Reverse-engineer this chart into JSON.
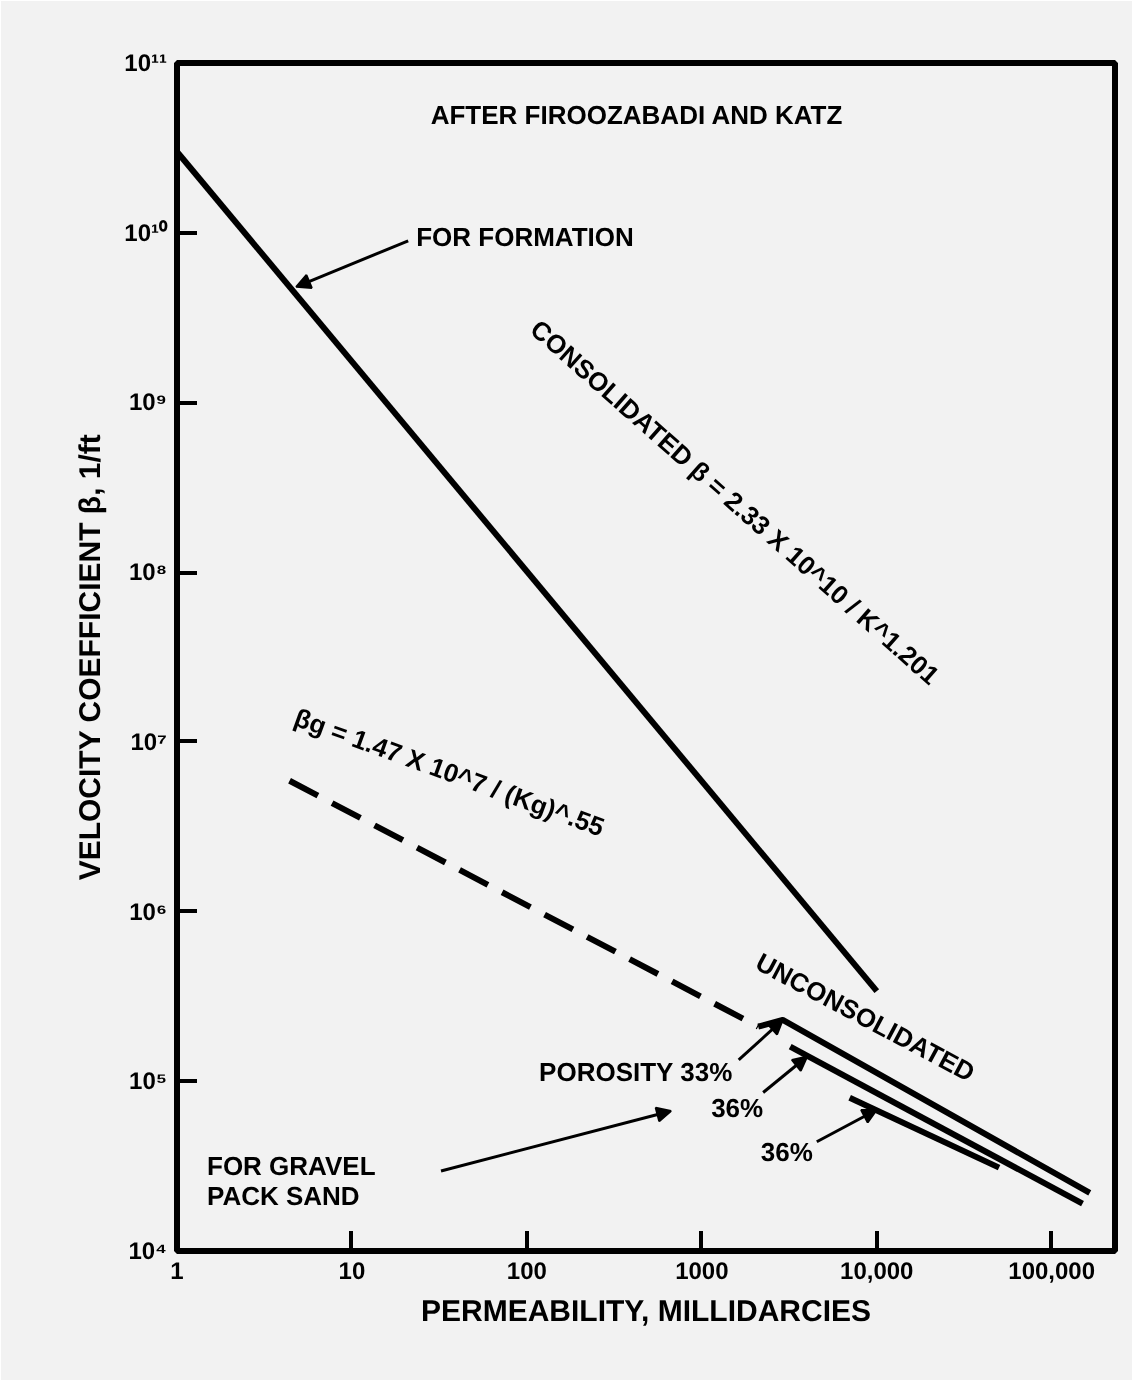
{
  "chart_data": {
    "type": "line",
    "log": "xy",
    "grid": false,
    "xlabel": "PERMEABILITY, MILLIDARCIES",
    "ylabel": "VELOCITY COEFFICIENT β, 1/ft",
    "xlim": [
      1,
      230000
    ],
    "ylim": [
      10000,
      100000000000
    ],
    "xticks": [
      1,
      10,
      100,
      1000,
      {
        "value": 10000,
        "label": "10,000"
      },
      {
        "value": 100000,
        "label": "100,000"
      }
    ],
    "yticks": [
      {
        "value": 10000,
        "label": "10⁴"
      },
      {
        "value": 100000,
        "label": "10⁵"
      },
      {
        "value": 1000000,
        "label": "10⁶"
      },
      {
        "value": 10000000,
        "label": "10⁷"
      },
      {
        "value": 100000000,
        "label": "10⁸"
      },
      {
        "value": 1000000000,
        "label": "10⁹"
      },
      {
        "value": 10000000000,
        "label": "10¹⁰"
      },
      {
        "value": 100000000000,
        "label": "10¹¹"
      }
    ],
    "series": [
      {
        "color": "#000000",
        "line_style": "solid",
        "x": [
          1,
          10000
        ],
        "values": [
          30000000000,
          340000
        ]
      },
      {
        "color": "#000000",
        "line_style": "dashed",
        "x": [
          4.4,
          2100
        ],
        "values": [
          5900000,
          210000
        ]
      },
      {
        "color": "#000000",
        "line_style": "solid",
        "x": [
          2100,
          2900,
          165000
        ],
        "values": [
          210000,
          230000,
          22000
        ]
      },
      {
        "color": "#000000",
        "line_style": "solid",
        "x": [
          3200,
          150000
        ],
        "values": [
          160000,
          19000
        ]
      },
      {
        "color": "#000000",
        "line_style": "solid",
        "x": [
          7000,
          50000
        ],
        "values": [
          80000,
          31000
        ]
      }
    ],
    "annotations": [
      "AFTER FIROOZABADI AND KATZ",
      {
        "text": "FOR FORMATION",
        "x": 4.8,
        "y": 4800000000
      },
      {
        "text": "CONSOLIDATED β = 2.33 X 10^10 / K^1.201",
        "x": 100,
        "y": 100000000
      },
      {
        "text": "βg = 1.47 X 10^7 / (Kg)^.55",
        "x": 30,
        "y": 2300000
      },
      {
        "text": "UNCONSOLIDATED",
        "x": 20000,
        "y": 63000
      },
      {
        "text": "POROSITY 33%",
        "x": 2900,
        "y": 230000
      },
      {
        "text": "36%",
        "x": 4000,
        "y": 140000
      },
      {
        "text": "36%",
        "x": 10000,
        "y": 68000
      },
      "FOR GRAVEL\nPACK SAND"
    ]
  }
}
